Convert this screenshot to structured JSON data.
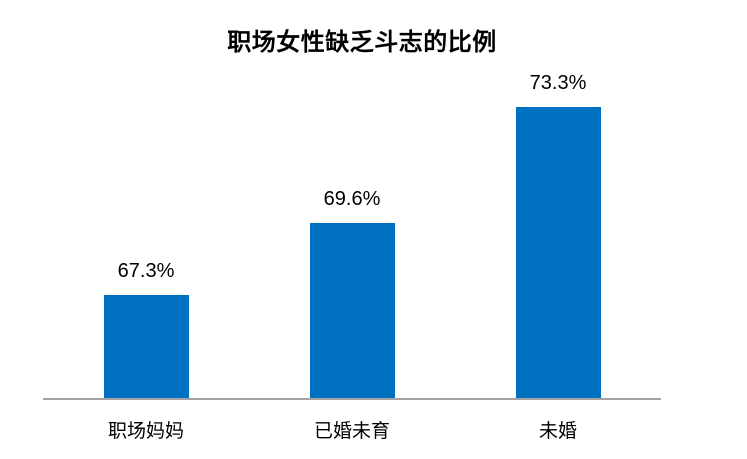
{
  "chart_data": {
    "type": "bar",
    "title": "职场女性缺乏斗志的比例",
    "categories": [
      "职场妈妈",
      "已婚未育",
      "未婚"
    ],
    "values": [
      67.3,
      69.6,
      73.3
    ],
    "value_labels": [
      "67.3%",
      "69.6%",
      "73.3%"
    ],
    "series_name": "职场女性缺乏斗志的比例",
    "unit": "%",
    "ylim": [
      64,
      74.8
    ],
    "grid": false,
    "legend": false,
    "data_labels_shown": true,
    "colors": {
      "bar": "#0070C0",
      "axis_line": "#A3A3A3",
      "title_text": "#000000",
      "label_text": "#000000",
      "background": "#FFFFFF"
    }
  }
}
